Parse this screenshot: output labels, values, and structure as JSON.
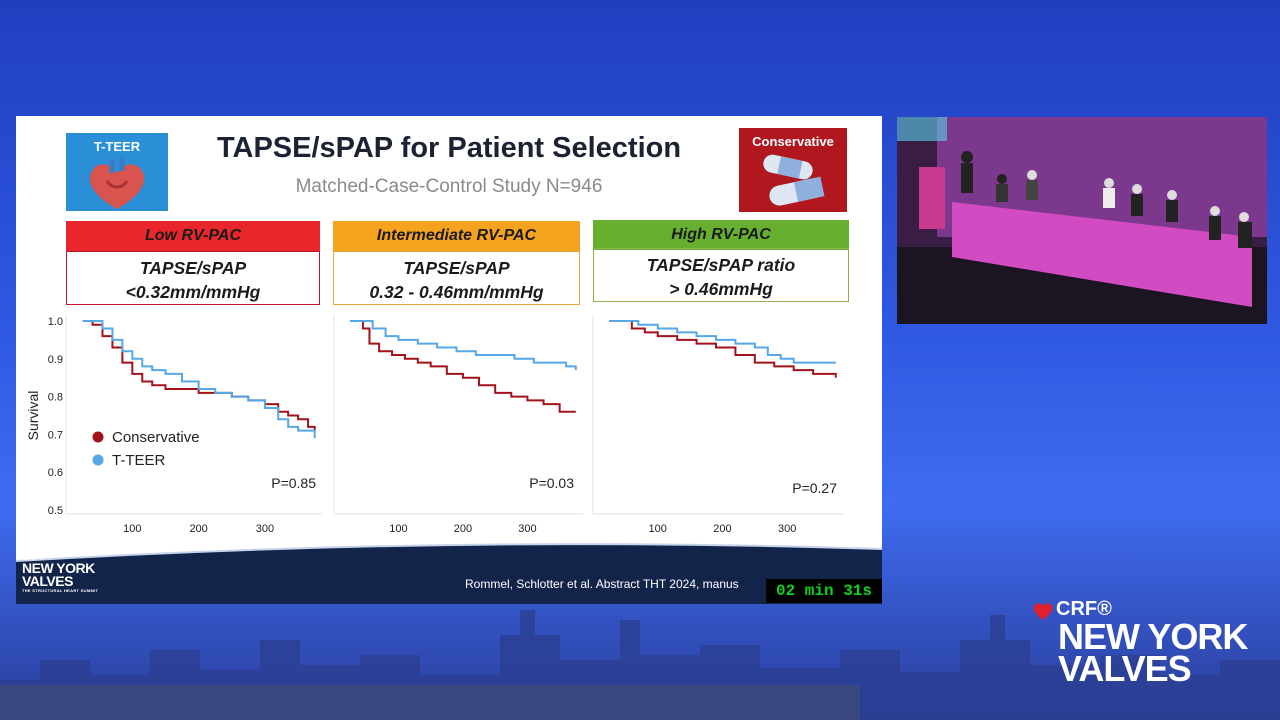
{
  "slide": {
    "title": "TAPSE/sPAP for Patient Selection",
    "subtitle": "Matched-Case-Control Study N=946",
    "badge_left": "T-TEER",
    "badge_right": "Conservative",
    "groups": [
      {
        "header": "Low RV-PAC",
        "line1": "TAPSE/sPAP",
        "line2": "<0.32mm/mmHg",
        "color": "#e8262b",
        "border": "#c0182a"
      },
      {
        "header": "Intermediate RV-PAC",
        "line1": "TAPSE/sPAP",
        "line2": "0.32 - 0.46mm/mmHg",
        "color": "#f5a21f",
        "border": "#e9a43a"
      },
      {
        "header": "High RV-PAC",
        "line1": "TAPSE/sPAP ratio",
        "line2": "> 0.46mmHg",
        "color": "#67b02f",
        "border": "#8fb14a"
      }
    ],
    "citation": "Rommel, Schlotter et al. Abstract THT 2024, manus",
    "timer": "02 min 31s"
  },
  "logo": {
    "crf": "CRF®",
    "line1": "NEW YORK",
    "line2": "VALVES",
    "tagline": "THE STRUCTURAL HEART SUMMIT"
  },
  "chart_data": [
    {
      "type": "line",
      "ylabel": "Survival",
      "ylim": [
        0.5,
        1.0
      ],
      "yticks": [
        "1.0",
        "0.9",
        "0.8",
        "0.7",
        "0.6",
        "0.5"
      ],
      "xticks": [
        "100",
        "200",
        "300"
      ],
      "xlim": [
        0,
        380
      ],
      "pvalue": "P=0.85",
      "legend": [
        "Conservative",
        "T-TEER"
      ],
      "series": [
        {
          "name": "Conservative",
          "color": "#a3121a",
          "x": [
            25,
            40,
            55,
            70,
            85,
            100,
            115,
            130,
            150,
            175,
            200,
            225,
            250,
            275,
            300,
            320,
            335,
            350,
            365,
            375
          ],
          "y": [
            1.0,
            0.99,
            0.96,
            0.93,
            0.89,
            0.86,
            0.84,
            0.83,
            0.82,
            0.82,
            0.81,
            0.81,
            0.8,
            0.79,
            0.78,
            0.76,
            0.75,
            0.74,
            0.72,
            0.71
          ]
        },
        {
          "name": "T-TEER",
          "color": "#56a7e6",
          "x": [
            25,
            40,
            55,
            70,
            85,
            100,
            115,
            130,
            150,
            175,
            200,
            225,
            250,
            275,
            300,
            320,
            335,
            350,
            365,
            375
          ],
          "y": [
            1.0,
            1.0,
            0.98,
            0.95,
            0.92,
            0.9,
            0.88,
            0.87,
            0.86,
            0.84,
            0.82,
            0.81,
            0.8,
            0.79,
            0.77,
            0.74,
            0.72,
            0.71,
            0.71,
            0.69
          ]
        }
      ]
    },
    {
      "type": "line",
      "xticks": [
        "100",
        "200",
        "300"
      ],
      "xlim": [
        0,
        380
      ],
      "ylim": [
        0.5,
        1.0
      ],
      "pvalue": "P=0.03",
      "series": [
        {
          "name": "Conservative",
          "color": "#a3121a",
          "x": [
            25,
            35,
            45,
            55,
            70,
            90,
            110,
            130,
            150,
            175,
            200,
            225,
            250,
            275,
            300,
            325,
            350,
            375
          ],
          "y": [
            1.0,
            1.0,
            0.98,
            0.94,
            0.92,
            0.91,
            0.9,
            0.89,
            0.88,
            0.86,
            0.85,
            0.83,
            0.81,
            0.8,
            0.79,
            0.78,
            0.76,
            0.76
          ]
        },
        {
          "name": "T-TEER",
          "color": "#56a7e6",
          "x": [
            25,
            40,
            60,
            80,
            100,
            130,
            160,
            190,
            220,
            250,
            280,
            310,
            340,
            360,
            375
          ],
          "y": [
            1.0,
            1.0,
            0.98,
            0.96,
            0.95,
            0.94,
            0.93,
            0.92,
            0.91,
            0.91,
            0.9,
            0.89,
            0.89,
            0.88,
            0.87
          ]
        }
      ]
    },
    {
      "type": "line",
      "xticks": [
        "100",
        "200",
        "300"
      ],
      "xlim": [
        0,
        380
      ],
      "ylim": [
        0.5,
        1.0
      ],
      "pvalue": "P=0.27",
      "series": [
        {
          "name": "Conservative",
          "color": "#a3121a",
          "x": [
            25,
            40,
            60,
            80,
            100,
            130,
            160,
            190,
            220,
            250,
            280,
            310,
            340,
            375
          ],
          "y": [
            1.0,
            1.0,
            0.98,
            0.97,
            0.96,
            0.95,
            0.94,
            0.93,
            0.91,
            0.89,
            0.88,
            0.87,
            0.86,
            0.85
          ]
        },
        {
          "name": "T-TEER",
          "color": "#56a7e6",
          "x": [
            25,
            45,
            70,
            100,
            130,
            160,
            190,
            220,
            250,
            270,
            290,
            310,
            340,
            375
          ],
          "y": [
            1.0,
            1.0,
            0.99,
            0.98,
            0.97,
            0.96,
            0.95,
            0.94,
            0.93,
            0.91,
            0.9,
            0.89,
            0.89,
            0.89
          ]
        }
      ]
    }
  ]
}
